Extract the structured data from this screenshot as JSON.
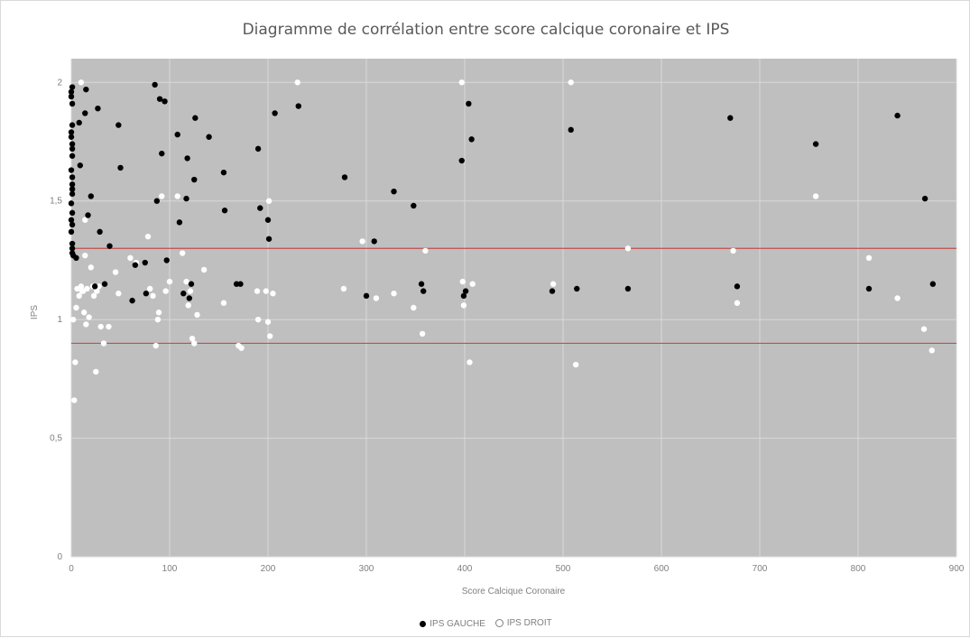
{
  "chart_data": {
    "type": "scatter",
    "title": "Diagramme de corrélation entre score calcique coronaire et IPS",
    "xlabel": "Score Calcique Coronaire",
    "ylabel": "IPS",
    "xlim": [
      0,
      900
    ],
    "ylim": [
      0,
      2.1
    ],
    "x_ticks": [
      0,
      100,
      200,
      300,
      400,
      500,
      600,
      700,
      800,
      900
    ],
    "y_ticks": [
      0,
      0.5,
      1,
      1.5,
      2
    ],
    "x_tick_labels": [
      "0",
      "100",
      "200",
      "300",
      "400",
      "500",
      "600",
      "700",
      "800",
      "900"
    ],
    "y_tick_labels": [
      "0",
      "0,5",
      "1",
      "1,5",
      "2"
    ],
    "grid": true,
    "plot_background": "#bfbfbf",
    "reference_lines": [
      {
        "y": 1.3,
        "color": "#c0504d"
      },
      {
        "y": 0.9,
        "color": "#c0504d"
      }
    ],
    "legend_position": "bottom",
    "series": [
      {
        "name": "IPS GAUCHE",
        "color": "#000000",
        "points": [
          [
            0,
            1.96
          ],
          [
            0,
            1.94
          ],
          [
            1,
            1.98
          ],
          [
            1,
            1.91
          ],
          [
            1,
            1.82
          ],
          [
            0,
            1.79
          ],
          [
            0,
            1.77
          ],
          [
            1,
            1.74
          ],
          [
            1,
            1.72
          ],
          [
            1,
            1.69
          ],
          [
            0,
            1.63
          ],
          [
            1,
            1.6
          ],
          [
            1,
            1.57
          ],
          [
            1,
            1.55
          ],
          [
            1,
            1.53
          ],
          [
            0,
            1.49
          ],
          [
            1,
            1.45
          ],
          [
            0,
            1.42
          ],
          [
            1,
            1.4
          ],
          [
            0,
            1.37
          ],
          [
            1,
            1.32
          ],
          [
            1,
            1.3
          ],
          [
            1,
            1.28
          ],
          [
            2,
            1.27
          ],
          [
            5,
            1.26
          ],
          [
            8,
            1.83
          ],
          [
            9,
            1.65
          ],
          [
            14,
            1.87
          ],
          [
            15,
            1.97
          ],
          [
            20,
            1.52
          ],
          [
            17,
            1.44
          ],
          [
            24,
            1.14
          ],
          [
            27,
            1.89
          ],
          [
            29,
            1.37
          ],
          [
            34,
            1.15
          ],
          [
            39,
            1.31
          ],
          [
            48,
            1.82
          ],
          [
            50,
            1.64
          ],
          [
            62,
            1.08
          ],
          [
            65,
            1.23
          ],
          [
            75,
            1.24
          ],
          [
            76,
            1.11
          ],
          [
            85,
            1.99
          ],
          [
            87,
            1.5
          ],
          [
            90,
            1.93
          ],
          [
            92,
            1.7
          ],
          [
            95,
            1.92
          ],
          [
            97,
            1.25
          ],
          [
            108,
            1.78
          ],
          [
            110,
            1.41
          ],
          [
            114,
            1.11
          ],
          [
            117,
            1.51
          ],
          [
            118,
            1.68
          ],
          [
            120,
            1.09
          ],
          [
            122,
            1.15
          ],
          [
            125,
            1.59
          ],
          [
            126,
            1.85
          ],
          [
            140,
            1.77
          ],
          [
            155,
            1.62
          ],
          [
            156,
            1.46
          ],
          [
            168,
            1.15
          ],
          [
            172,
            1.15
          ],
          [
            190,
            1.72
          ],
          [
            192,
            1.47
          ],
          [
            200,
            1.42
          ],
          [
            201,
            1.34
          ],
          [
            207,
            1.87
          ],
          [
            231,
            1.9
          ],
          [
            278,
            1.6
          ],
          [
            300,
            1.1
          ],
          [
            308,
            1.33
          ],
          [
            328,
            1.54
          ],
          [
            348,
            1.48
          ],
          [
            356,
            1.15
          ],
          [
            358,
            1.12
          ],
          [
            397,
            1.67
          ],
          [
            399,
            1.1
          ],
          [
            401,
            1.12
          ],
          [
            404,
            1.91
          ],
          [
            407,
            1.76
          ],
          [
            489,
            1.12
          ],
          [
            508,
            1.8
          ],
          [
            514,
            1.13
          ],
          [
            566,
            1.13
          ],
          [
            670,
            1.85
          ],
          [
            677,
            1.14
          ],
          [
            757,
            1.74
          ],
          [
            811,
            1.13
          ],
          [
            840,
            1.86
          ],
          [
            868,
            1.51
          ],
          [
            876,
            1.15
          ]
        ]
      },
      {
        "name": "IPS DROIT",
        "color": "#ffffff",
        "points": [
          [
            3,
            0.66
          ],
          [
            4,
            0.82
          ],
          [
            2,
            1.0
          ],
          [
            5,
            1.05
          ],
          [
            6,
            1.13
          ],
          [
            8,
            1.1
          ],
          [
            10,
            1.14
          ],
          [
            11,
            1.12
          ],
          [
            12,
            1.12
          ],
          [
            13,
            1.03
          ],
          [
            14,
            1.27
          ],
          [
            15,
            0.98
          ],
          [
            16,
            1.13
          ],
          [
            18,
            1.01
          ],
          [
            20,
            1.22
          ],
          [
            22,
            1.14
          ],
          [
            23,
            1.1
          ],
          [
            25,
            0.78
          ],
          [
            26,
            1.12
          ],
          [
            28,
            1.14
          ],
          [
            30,
            0.97
          ],
          [
            33,
            0.9
          ],
          [
            38,
            0.97
          ],
          [
            45,
            1.2
          ],
          [
            48,
            1.11
          ],
          [
            60,
            1.26
          ],
          [
            66,
            1.24
          ],
          [
            10,
            2.0
          ],
          [
            14,
            1.42
          ],
          [
            78,
            1.35
          ],
          [
            80,
            1.13
          ],
          [
            83,
            1.1
          ],
          [
            86,
            0.89
          ],
          [
            88,
            1.0
          ],
          [
            89,
            1.03
          ],
          [
            92,
            1.52
          ],
          [
            96,
            1.12
          ],
          [
            100,
            1.16
          ],
          [
            108,
            1.52
          ],
          [
            113,
            1.28
          ],
          [
            117,
            1.16
          ],
          [
            119,
            1.06
          ],
          [
            121,
            1.12
          ],
          [
            123,
            0.92
          ],
          [
            125,
            0.9
          ],
          [
            128,
            1.02
          ],
          [
            135,
            1.21
          ],
          [
            155,
            1.07
          ],
          [
            170,
            0.89
          ],
          [
            173,
            0.88
          ],
          [
            189,
            1.12
          ],
          [
            190,
            1.0
          ],
          [
            198,
            1.12
          ],
          [
            200,
            0.99
          ],
          [
            201,
            1.5
          ],
          [
            202,
            0.93
          ],
          [
            205,
            1.11
          ],
          [
            230,
            2.0
          ],
          [
            277,
            1.13
          ],
          [
            296,
            1.33
          ],
          [
            310,
            1.09
          ],
          [
            328,
            1.11
          ],
          [
            348,
            1.05
          ],
          [
            357,
            0.94
          ],
          [
            360,
            1.29
          ],
          [
            397,
            2.0
          ],
          [
            398,
            1.16
          ],
          [
            399,
            1.06
          ],
          [
            405,
            0.82
          ],
          [
            408,
            1.15
          ],
          [
            490,
            1.15
          ],
          [
            508,
            2.0
          ],
          [
            513,
            0.81
          ],
          [
            566,
            1.3
          ],
          [
            673,
            1.29
          ],
          [
            677,
            1.07
          ],
          [
            757,
            1.52
          ],
          [
            811,
            1.26
          ],
          [
            840,
            1.09
          ],
          [
            867,
            0.96
          ],
          [
            875,
            0.87
          ]
        ]
      }
    ]
  }
}
